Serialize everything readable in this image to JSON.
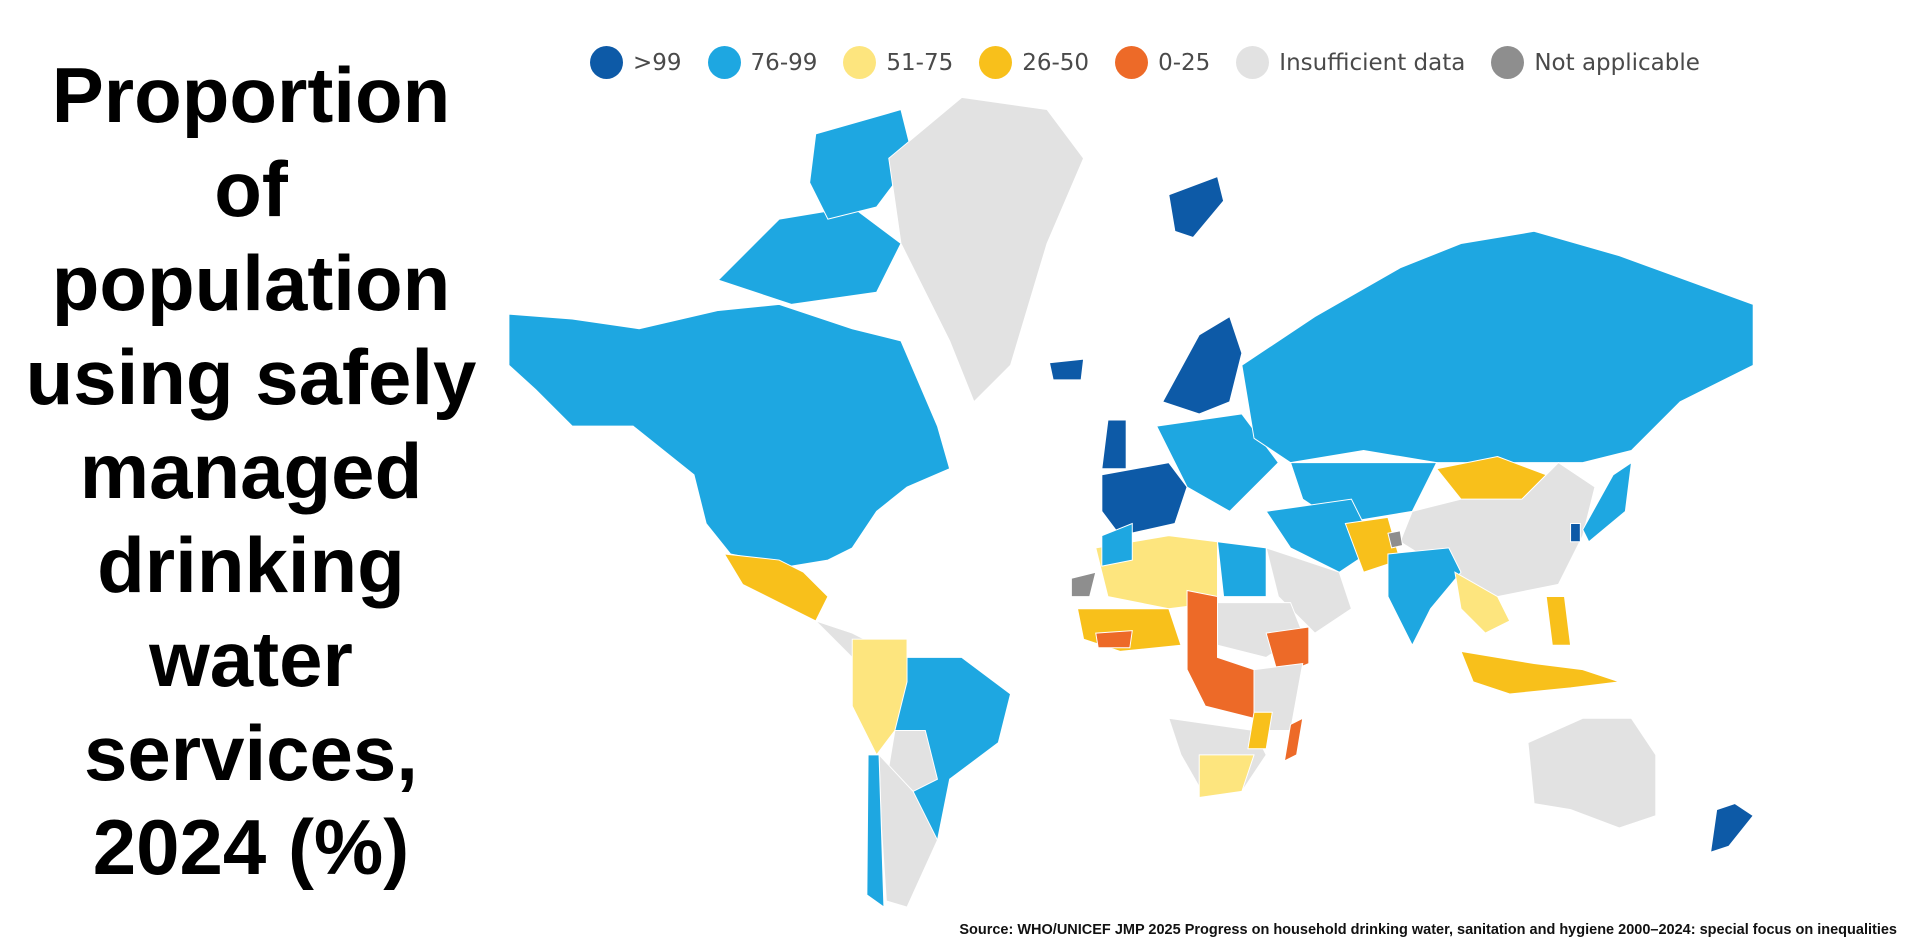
{
  "title": "Proportion of population using safely managed drinking water services, 2024 (%)",
  "legend": {
    "items": [
      {
        "label": ">99",
        "color": "#0d5aa7"
      },
      {
        "label": "76-99",
        "color": "#1ea7e1"
      },
      {
        "label": "51-75",
        "color": "#fde57e"
      },
      {
        "label": "26-50",
        "color": "#f8c01b"
      },
      {
        "label": "0-25",
        "color": "#ed6a28"
      },
      {
        "label": "Insufficient data",
        "color": "#e2e2e2"
      },
      {
        "label": "Not applicable",
        "color": "#8e8e8e"
      }
    ]
  },
  "source": "Source: WHO/UNICEF JMP 2025 Progress on household drinking water, sanitation and hygiene 2000–2024: special focus on inequalities"
}
